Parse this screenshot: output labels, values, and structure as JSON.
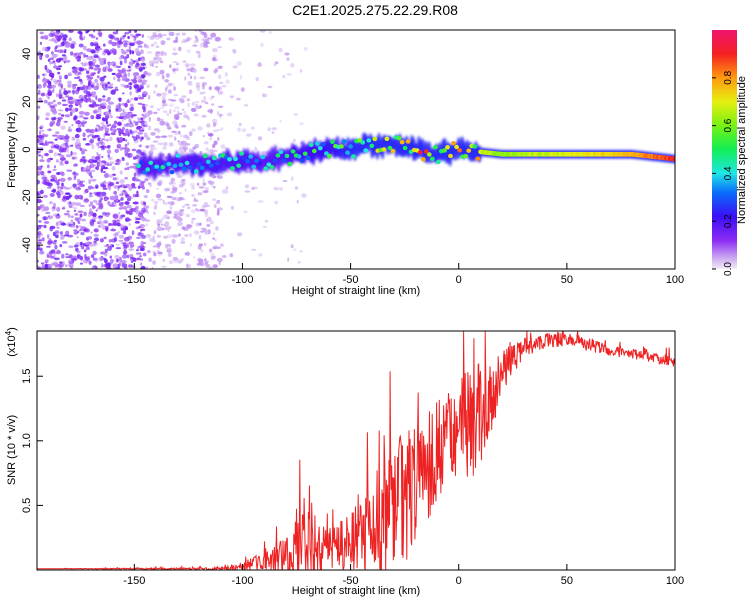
{
  "title": "C2E1.2025.275.22.29.R08",
  "colors": {
    "snr_line": "#ee2222",
    "axis": "#000000",
    "background": "#ffffff"
  },
  "chart_data": [
    {
      "type": "heatmap",
      "title": "C2E1.2025.275.22.29.R08",
      "xlabel": "Height of straight line (km)",
      "ylabel": "Frequency (Hz)",
      "xlim": [
        -195,
        100
      ],
      "ylim": [
        -50,
        50
      ],
      "xticks": [
        -150,
        -100,
        -50,
        0,
        50,
        100
      ],
      "yticks": [
        -40,
        -20,
        0,
        20,
        40
      ],
      "colorbar": {
        "label": "Normalized spectral amplitude",
        "range": [
          0,
          1
        ],
        "ticks": [
          0.0,
          0.2,
          0.4,
          0.6,
          0.8
        ],
        "colormap": "rainbow-violet-to-magenta"
      },
      "ridge": {
        "x": [
          -145,
          -130,
          -115,
          -100,
          -90,
          -80,
          -70,
          -60,
          -50,
          -40,
          -30,
          -20,
          -10,
          0,
          10,
          20,
          40,
          60,
          80,
          100
        ],
        "frequency": [
          -7,
          -6,
          -6,
          -5,
          -5,
          -3,
          -1,
          0,
          0,
          2,
          2,
          0,
          -2,
          0,
          -1,
          -2,
          -2,
          -2,
          -2,
          -4
        ],
        "peak_amplitude": [
          0.4,
          0.42,
          0.45,
          0.45,
          0.4,
          0.45,
          0.48,
          0.5,
          0.55,
          0.6,
          0.8,
          0.85,
          0.75,
          0.9,
          0.7,
          0.65,
          0.7,
          0.75,
          0.8,
          0.95
        ]
      }
    },
    {
      "type": "line",
      "xlabel": "Height of straight line (km)",
      "ylabel": "SNR (10 * v/v)",
      "yscale_label": "(x10",
      "yscale_exponent": "4",
      "xlim": [
        -195,
        100
      ],
      "ylim": [
        0,
        1.85
      ],
      "xticks": [
        -150,
        -100,
        -50,
        0,
        50,
        100
      ],
      "yticks": [
        0.5,
        1.0,
        1.5
      ],
      "ytick_labels": [
        "0.5",
        "1.0",
        "1.5"
      ],
      "series": [
        {
          "name": "SNR",
          "x": [
            -195,
            -150,
            -110,
            -100,
            -90,
            -80,
            -75,
            -70,
            -65,
            -60,
            -55,
            -50,
            -45,
            -40,
            -35,
            -30,
            -25,
            -20,
            -15,
            -10,
            -5,
            0,
            5,
            10,
            15,
            20,
            25,
            30,
            40,
            50,
            60,
            70,
            80,
            90,
            100
          ],
          "baseline": [
            0.01,
            0.01,
            0.01,
            0.03,
            0.08,
            0.12,
            0.2,
            0.28,
            0.22,
            0.2,
            0.2,
            0.25,
            0.3,
            0.35,
            0.45,
            0.55,
            0.65,
            0.75,
            0.85,
            0.95,
            1.05,
            1.1,
            1.2,
            1.25,
            1.4,
            1.55,
            1.65,
            1.72,
            1.78,
            1.8,
            1.75,
            1.7,
            1.68,
            1.65,
            1.62
          ],
          "amplitude": [
            0.0,
            0.005,
            0.01,
            0.03,
            0.08,
            0.15,
            0.3,
            0.4,
            0.25,
            0.18,
            0.2,
            0.25,
            0.3,
            0.4,
            0.5,
            0.55,
            0.55,
            0.5,
            0.45,
            0.4,
            0.35,
            0.4,
            0.5,
            0.4,
            0.3,
            0.2,
            0.12,
            0.08,
            0.06,
            0.06,
            0.05,
            0.04,
            0.04,
            0.04,
            0.05
          ]
        }
      ]
    }
  ]
}
